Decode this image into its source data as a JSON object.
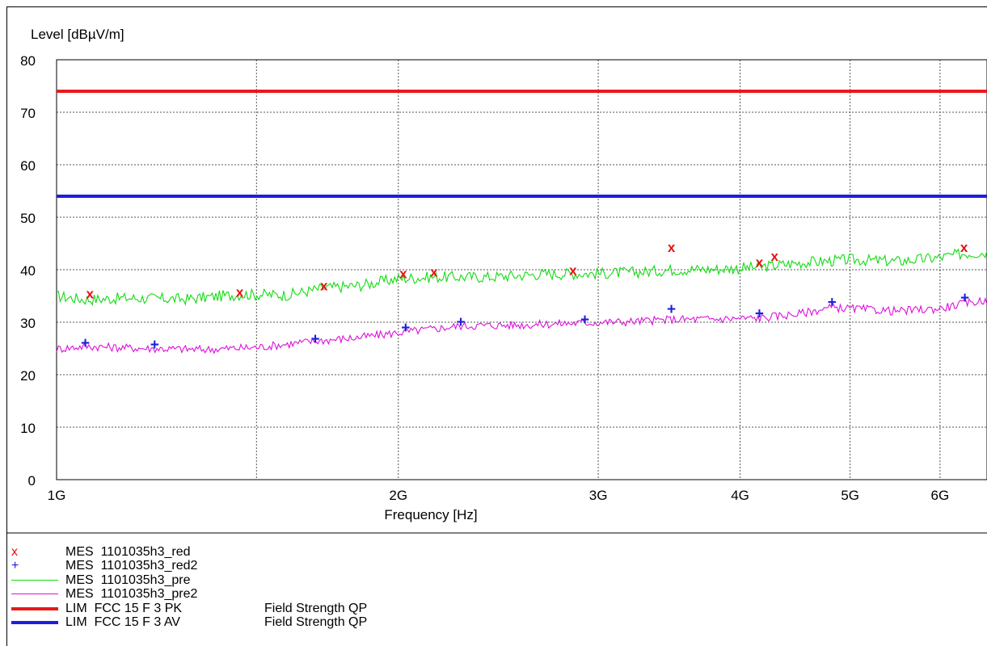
{
  "chart_data": {
    "type": "line",
    "ylabel": "Level [dBµV/m]",
    "xlabel": "Frequency [Hz]",
    "x_scale": "log",
    "xlim": [
      1000000000,
      6600000000
    ],
    "ylim": [
      0,
      80
    ],
    "grid": true,
    "y_ticks": [
      0,
      10,
      20,
      30,
      40,
      50,
      60,
      70,
      80
    ],
    "x_ticks": [
      {
        "value": 1000000000,
        "label": "1G"
      },
      {
        "value": 2000000000,
        "label": "2G"
      },
      {
        "value": 3000000000,
        "label": "3G"
      },
      {
        "value": 4000000000,
        "label": "4G"
      },
      {
        "value": 5000000000,
        "label": "5G"
      },
      {
        "value": 6000000000,
        "label": "6G"
      }
    ],
    "limits": [
      {
        "name": "LIM  FCC 15 F 3 PK",
        "note": "Field Strength QP",
        "value": 74,
        "color": "#e8191c"
      },
      {
        "name": "LIM  FCC 15 F 3 AV",
        "note": "Field Strength QP",
        "value": 54,
        "color": "#1e1edc"
      }
    ],
    "series": [
      {
        "name": "MES  1101035h3_red",
        "kind": "marker",
        "marker": "x",
        "color": "#e81010",
        "points": [
          [
            1070000000,
            35.5
          ],
          [
            1450000000,
            35.8
          ],
          [
            1720000000,
            37.0
          ],
          [
            2020000000,
            39.3
          ],
          [
            2150000000,
            39.6
          ],
          [
            2850000000,
            39.9
          ],
          [
            3480000000,
            44.3
          ],
          [
            4160000000,
            41.5
          ],
          [
            4290000000,
            42.6
          ],
          [
            6300000000,
            44.3
          ]
        ]
      },
      {
        "name": "MES  1101035h3_red2",
        "kind": "marker",
        "marker": "+",
        "color": "#1e1edc",
        "points": [
          [
            1060000000,
            26.0
          ],
          [
            1220000000,
            25.7
          ],
          [
            1690000000,
            26.8
          ],
          [
            2030000000,
            28.9
          ],
          [
            2270000000,
            30.0
          ],
          [
            2920000000,
            30.5
          ],
          [
            3480000000,
            32.5
          ],
          [
            4160000000,
            31.6
          ],
          [
            4820000000,
            33.8
          ],
          [
            6310000000,
            34.6
          ]
        ]
      },
      {
        "name": "MES  1101035h3_pre",
        "kind": "trace",
        "color": "#10dc10",
        "points": [
          [
            1000000000,
            35.0
          ],
          [
            1060000000,
            34.3
          ],
          [
            1150000000,
            34.6
          ],
          [
            1300000000,
            34.4
          ],
          [
            1450000000,
            35.3
          ],
          [
            1600000000,
            35.2
          ],
          [
            1720000000,
            36.5
          ],
          [
            1850000000,
            37.0
          ],
          [
            2000000000,
            38.3
          ],
          [
            2150000000,
            38.6
          ],
          [
            2400000000,
            38.6
          ],
          [
            2700000000,
            39.2
          ],
          [
            3000000000,
            39.3
          ],
          [
            3300000000,
            39.6
          ],
          [
            3480000000,
            40.0
          ],
          [
            3800000000,
            40.1
          ],
          [
            4160000000,
            40.5
          ],
          [
            4500000000,
            41.3
          ],
          [
            5000000000,
            41.9
          ],
          [
            5500000000,
            41.6
          ],
          [
            6000000000,
            42.3
          ],
          [
            6300000000,
            43.1
          ],
          [
            6600000000,
            43.3
          ]
        ]
      },
      {
        "name": "MES  1101035h3_pre2",
        "kind": "trace",
        "color": "#dc10dc",
        "points": [
          [
            1000000000,
            24.9
          ],
          [
            1060000000,
            25.4
          ],
          [
            1200000000,
            25.0
          ],
          [
            1350000000,
            24.8
          ],
          [
            1500000000,
            25.2
          ],
          [
            1690000000,
            26.4
          ],
          [
            1850000000,
            27.1
          ],
          [
            2000000000,
            28.0
          ],
          [
            2270000000,
            29.3
          ],
          [
            2600000000,
            29.5
          ],
          [
            2920000000,
            29.9
          ],
          [
            3200000000,
            30.1
          ],
          [
            3480000000,
            30.5
          ],
          [
            3800000000,
            30.6
          ],
          [
            4160000000,
            30.8
          ],
          [
            4500000000,
            31.6
          ],
          [
            4820000000,
            32.8
          ],
          [
            5500000000,
            32.1
          ],
          [
            6000000000,
            32.6
          ],
          [
            6310000000,
            33.6
          ],
          [
            6600000000,
            34.2
          ]
        ]
      }
    ]
  }
}
